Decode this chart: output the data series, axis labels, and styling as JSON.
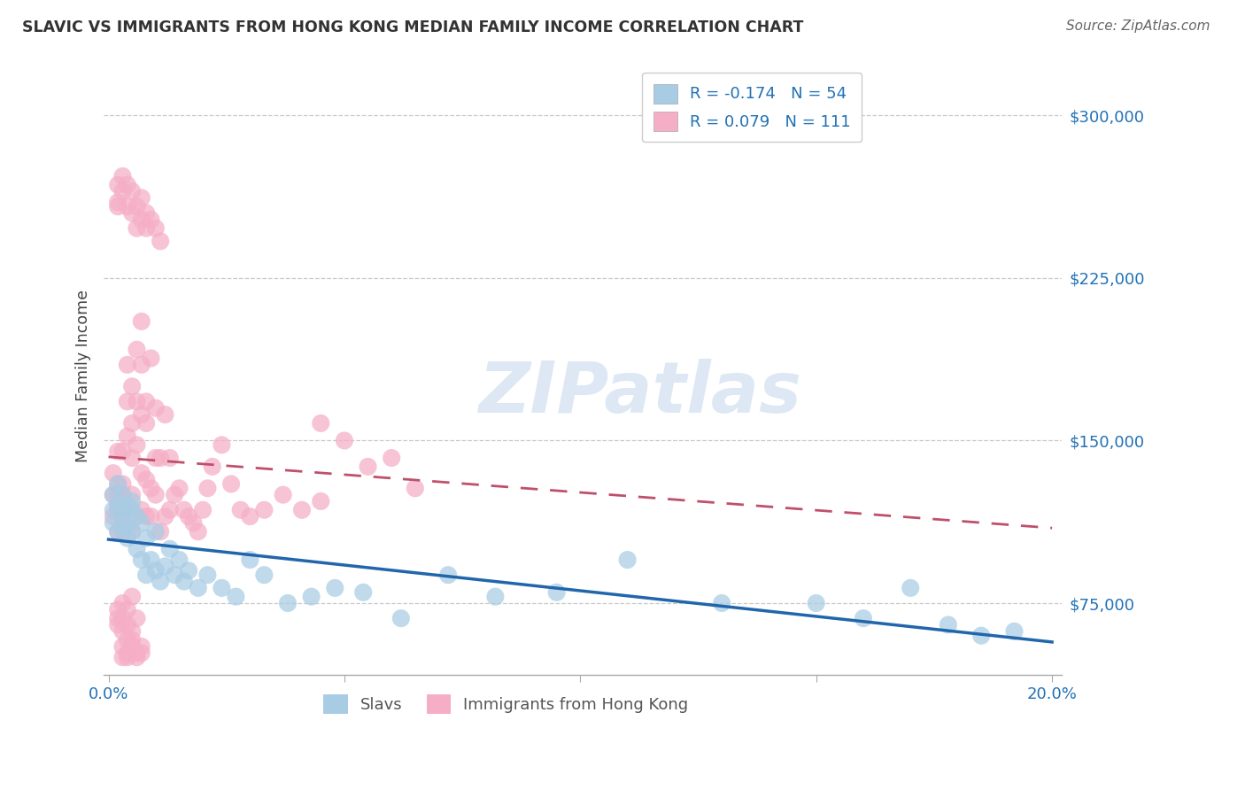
{
  "title": "SLAVIC VS IMMIGRANTS FROM HONG KONG MEDIAN FAMILY INCOME CORRELATION CHART",
  "source": "Source: ZipAtlas.com",
  "ylabel": "Median Family Income",
  "xlim": [
    -0.001,
    0.202
  ],
  "ylim": [
    42000,
    318000
  ],
  "yticks": [
    75000,
    150000,
    225000,
    300000
  ],
  "xticks": [
    0.0,
    0.05,
    0.1,
    0.15,
    0.2
  ],
  "xtick_labels": [
    "0.0%",
    "",
    "",
    "",
    "20.0%"
  ],
  "watermark": "ZIPatlas",
  "blue_color": "#a8cce4",
  "pink_color": "#f5aec5",
  "blue_line_color": "#2166ac",
  "pink_line_color": "#c0506a",
  "background_color": "#ffffff",
  "grid_color": "#c8c8c8",
  "blue_R": -0.174,
  "blue_N": 54,
  "pink_R": 0.079,
  "pink_N": 111,
  "legend_label1": "Slavs",
  "legend_label2": "Immigrants from Hong Kong",
  "slavs_x": [
    0.001,
    0.001,
    0.001,
    0.002,
    0.002,
    0.002,
    0.003,
    0.003,
    0.003,
    0.003,
    0.004,
    0.004,
    0.004,
    0.005,
    0.005,
    0.005,
    0.006,
    0.006,
    0.007,
    0.007,
    0.008,
    0.008,
    0.009,
    0.01,
    0.01,
    0.011,
    0.012,
    0.013,
    0.014,
    0.015,
    0.016,
    0.017,
    0.019,
    0.021,
    0.024,
    0.027,
    0.03,
    0.033,
    0.038,
    0.043,
    0.048,
    0.054,
    0.062,
    0.072,
    0.082,
    0.095,
    0.11,
    0.13,
    0.15,
    0.16,
    0.17,
    0.178,
    0.185,
    0.192
  ],
  "slavs_y": [
    118000,
    112000,
    125000,
    120000,
    108000,
    130000,
    118000,
    110000,
    125000,
    115000,
    120000,
    110000,
    105000,
    118000,
    108000,
    122000,
    115000,
    100000,
    112000,
    95000,
    105000,
    88000,
    95000,
    90000,
    108000,
    85000,
    92000,
    100000,
    88000,
    95000,
    85000,
    90000,
    82000,
    88000,
    82000,
    78000,
    95000,
    88000,
    75000,
    78000,
    82000,
    80000,
    68000,
    88000,
    78000,
    80000,
    95000,
    75000,
    75000,
    68000,
    82000,
    65000,
    60000,
    62000
  ],
  "hk_x": [
    0.001,
    0.001,
    0.001,
    0.002,
    0.002,
    0.002,
    0.002,
    0.002,
    0.002,
    0.003,
    0.003,
    0.003,
    0.003,
    0.003,
    0.003,
    0.004,
    0.004,
    0.004,
    0.004,
    0.005,
    0.005,
    0.005,
    0.005,
    0.005,
    0.006,
    0.006,
    0.006,
    0.006,
    0.007,
    0.007,
    0.007,
    0.007,
    0.007,
    0.008,
    0.008,
    0.008,
    0.008,
    0.009,
    0.009,
    0.009,
    0.01,
    0.01,
    0.01,
    0.011,
    0.011,
    0.012,
    0.012,
    0.013,
    0.013,
    0.014,
    0.015,
    0.016,
    0.017,
    0.018,
    0.019,
    0.02,
    0.021,
    0.022,
    0.024,
    0.026,
    0.028,
    0.03,
    0.033,
    0.037,
    0.041,
    0.045,
    0.05,
    0.055,
    0.06,
    0.065,
    0.002,
    0.002,
    0.002,
    0.003,
    0.003,
    0.004,
    0.004,
    0.005,
    0.005,
    0.006,
    0.006,
    0.007,
    0.007,
    0.008,
    0.008,
    0.009,
    0.01,
    0.011,
    0.002,
    0.002,
    0.002,
    0.003,
    0.003,
    0.003,
    0.004,
    0.004,
    0.005,
    0.005,
    0.006,
    0.003,
    0.003,
    0.004,
    0.004,
    0.004,
    0.005,
    0.005,
    0.006,
    0.006,
    0.007,
    0.007,
    0.045
  ],
  "hk_y": [
    125000,
    115000,
    135000,
    130000,
    118000,
    145000,
    108000,
    125000,
    120000,
    130000,
    118000,
    108000,
    125000,
    115000,
    145000,
    168000,
    185000,
    152000,
    120000,
    175000,
    108000,
    158000,
    125000,
    142000,
    192000,
    148000,
    115000,
    168000,
    205000,
    135000,
    162000,
    185000,
    118000,
    132000,
    168000,
    115000,
    158000,
    188000,
    115000,
    128000,
    142000,
    165000,
    125000,
    108000,
    142000,
    162000,
    115000,
    142000,
    118000,
    125000,
    128000,
    118000,
    115000,
    112000,
    108000,
    118000,
    128000,
    138000,
    148000,
    130000,
    118000,
    115000,
    118000,
    125000,
    118000,
    122000,
    150000,
    138000,
    142000,
    128000,
    260000,
    268000,
    258000,
    265000,
    272000,
    268000,
    258000,
    265000,
    255000,
    248000,
    258000,
    262000,
    252000,
    248000,
    255000,
    252000,
    248000,
    242000,
    68000,
    72000,
    65000,
    62000,
    75000,
    68000,
    72000,
    65000,
    78000,
    62000,
    68000,
    50000,
    55000,
    58000,
    50000,
    52000,
    55000,
    58000,
    52000,
    50000,
    55000,
    52000,
    158000
  ]
}
